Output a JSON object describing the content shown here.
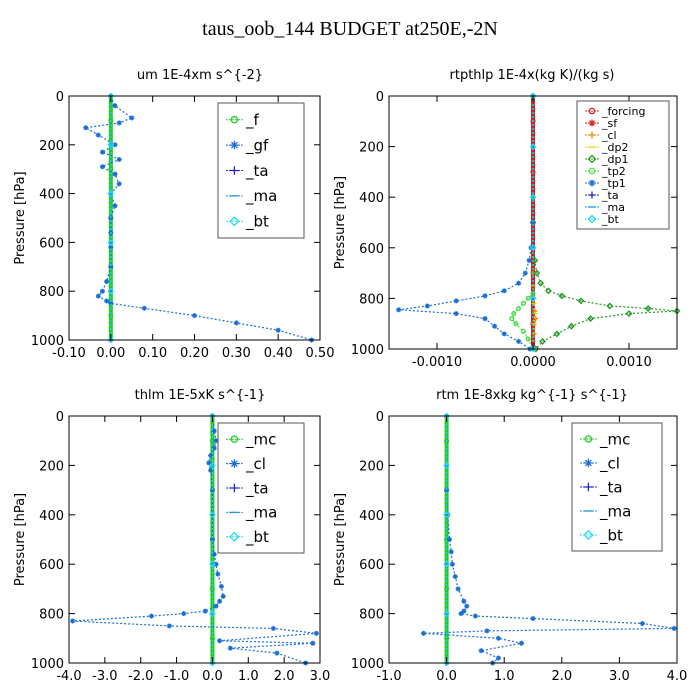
{
  "figure_title": "taus_oob_144  BUDGET at250E,-2N",
  "chart_data": [
    {
      "type": "line",
      "title": "um   1E-4xm s^{-2}",
      "ylabel": "Pressure [hPa]",
      "xlim": [
        -0.1,
        0.5
      ],
      "ylim": [
        1000,
        0
      ],
      "xticks": [
        "-0.10",
        "0.00",
        "0.10",
        "0.20",
        "0.30",
        "0.40",
        "0.50"
      ],
      "xtick_values": [
        -0.1,
        0.0,
        0.1,
        0.2,
        0.3,
        0.4,
        0.5
      ],
      "yticks": [
        "0",
        "200",
        "400",
        "600",
        "800",
        "1000"
      ],
      "ytick_values": [
        0,
        200,
        400,
        600,
        800,
        1000
      ],
      "legend_position": "top-right",
      "series": [
        {
          "name": "_f",
          "color": "#22cc22",
          "x": [
            0,
            0,
            0,
            0,
            0,
            0,
            0,
            0,
            0,
            0,
            0
          ],
          "y": [
            0,
            100,
            200,
            300,
            400,
            500,
            600,
            700,
            800,
            900,
            1000
          ]
        },
        {
          "name": "_gf",
          "color": "#1a6fd6",
          "x": [
            0.0,
            0.01,
            0.05,
            0.02,
            -0.06,
            -0.03,
            0.01,
            -0.02,
            0.02,
            -0.02,
            0.01,
            0.02,
            0.0,
            0.01,
            0.0,
            0.0,
            0.0,
            0.0,
            -0.01,
            -0.02,
            -0.03,
            -0.01,
            0.0,
            0.08,
            0.2,
            0.3,
            0.4,
            0.48
          ],
          "y": [
            0,
            40,
            90,
            110,
            130,
            160,
            200,
            230,
            260,
            290,
            320,
            360,
            400,
            450,
            500,
            560,
            620,
            700,
            760,
            800,
            820,
            840,
            850,
            870,
            900,
            930,
            960,
            1000
          ]
        },
        {
          "name": "_ta",
          "color": "#2222cc",
          "x": [
            0,
            0,
            0,
            0,
            0,
            0
          ],
          "y": [
            0,
            200,
            400,
            600,
            800,
            1000
          ]
        },
        {
          "name": "_ma",
          "color": "#2a8fd0",
          "x": [
            0,
            0,
            0,
            0,
            0,
            0
          ],
          "y": [
            0,
            200,
            400,
            600,
            800,
            1000
          ]
        },
        {
          "name": "_bt",
          "color": "#22ddee",
          "x": [
            0,
            0,
            0,
            0,
            0,
            0
          ],
          "y": [
            0,
            200,
            400,
            600,
            800,
            1000
          ]
        }
      ]
    },
    {
      "type": "line",
      "title": "rtpthlp   1E-4x(kg K)/(kg s)",
      "ylabel": "Pressure [hPa]",
      "xlim": [
        -0.0015,
        0.0015
      ],
      "ylim": [
        1000,
        0
      ],
      "xticks": [
        "-0.0010",
        "0.0000",
        "0.0010"
      ],
      "xtick_values": [
        -0.001,
        0.0,
        0.001
      ],
      "yticks": [
        "0",
        "200",
        "400",
        "600",
        "800",
        "1000"
      ],
      "ytick_values": [
        0,
        200,
        400,
        600,
        800,
        1000
      ],
      "legend_position": "top-right",
      "series": [
        {
          "name": "_forcing",
          "color": "#cc2222",
          "x": [
            0,
            0,
            0,
            0,
            0,
            0,
            0,
            0,
            0,
            0,
            0
          ],
          "y": [
            0,
            100,
            200,
            300,
            400,
            500,
            600,
            700,
            800,
            900,
            1000
          ]
        },
        {
          "name": "_sf",
          "color": "#dd2222",
          "x": [
            0,
            0,
            0,
            0,
            0,
            0,
            0,
            0,
            0,
            0,
            0
          ],
          "y": [
            0,
            100,
            200,
            300,
            400,
            500,
            600,
            700,
            800,
            900,
            1000
          ]
        },
        {
          "name": "_cl",
          "color": "#ee8800",
          "x": [
            0,
            0,
            1e-05,
            2e-05,
            3e-05,
            1e-05,
            0
          ],
          "y": [
            0,
            700,
            800,
            850,
            880,
            940,
            1000
          ]
        },
        {
          "name": "_dp2",
          "color": "#e8d200",
          "x": [
            0,
            0,
            1e-05,
            2e-05,
            1e-05,
            0
          ],
          "y": [
            0,
            750,
            820,
            860,
            900,
            1000
          ]
        },
        {
          "name": "_dp1",
          "color": "#229922",
          "x": [
            0,
            0,
            0,
            2e-05,
            4e-05,
            8e-05,
            0.00016,
            0.0003,
            0.0005,
            0.0008,
            0.0012,
            0.0015,
            0.001,
            0.0006,
            0.0004,
            0.00025,
            0.0001,
            3e-05
          ],
          "y": [
            0,
            500,
            600,
            650,
            700,
            740,
            770,
            790,
            810,
            830,
            840,
            850,
            860,
            880,
            910,
            940,
            970,
            1000
          ]
        },
        {
          "name": "_tp2",
          "color": "#44dd44",
          "x": [
            0,
            0,
            -5e-05,
            -0.0001,
            -0.00015,
            -0.0002,
            -0.00022,
            -0.00018,
            -0.0001,
            -5e-05,
            0
          ],
          "y": [
            0,
            780,
            800,
            820,
            840,
            860,
            880,
            900,
            930,
            960,
            1000
          ]
        },
        {
          "name": "_tp1",
          "color": "#1a6fd6",
          "x": [
            0,
            0,
            -2e-05,
            -4e-05,
            -8e-05,
            -0.00015,
            -0.0003,
            -0.0005,
            -0.0008,
            -0.0011,
            -0.0014,
            -0.0008,
            -0.0005,
            -0.0004,
            -0.0003,
            -0.00015,
            -3e-05
          ],
          "y": [
            0,
            500,
            600,
            650,
            700,
            740,
            770,
            790,
            810,
            830,
            845,
            860,
            880,
            910,
            940,
            970,
            1000
          ]
        },
        {
          "name": "_ta",
          "color": "#2222cc",
          "x": [
            0,
            0,
            0,
            0,
            0,
            0
          ],
          "y": [
            0,
            200,
            400,
            600,
            800,
            1000
          ]
        },
        {
          "name": "_ma",
          "color": "#2a8fd0",
          "x": [
            0,
            0,
            0,
            0,
            0,
            0
          ],
          "y": [
            0,
            200,
            400,
            600,
            800,
            1000
          ]
        },
        {
          "name": "_bt",
          "color": "#22ddee",
          "x": [
            0,
            0,
            0,
            0,
            0,
            0
          ],
          "y": [
            0,
            200,
            400,
            600,
            800,
            1000
          ]
        }
      ]
    },
    {
      "type": "line",
      "title": "thlm   1E-5xK  s^{-1}",
      "ylabel": "Pressure [hPa]",
      "xlim": [
        -4.0,
        3.0
      ],
      "ylim": [
        1000,
        0
      ],
      "xticks": [
        "-4.0",
        "-3.0",
        "-2.0",
        "-1.0",
        "0.0",
        "1.0",
        "2.0",
        "3.0"
      ],
      "xtick_values": [
        -4.0,
        -3.0,
        -2.0,
        -1.0,
        0.0,
        1.0,
        2.0,
        3.0
      ],
      "yticks": [
        "0",
        "200",
        "400",
        "600",
        "800",
        "1000"
      ],
      "ytick_values": [
        0,
        200,
        400,
        600,
        800,
        1000
      ],
      "legend_position": "top-right",
      "series": [
        {
          "name": "_mc",
          "color": "#22cc22",
          "x": [
            0,
            0,
            0,
            0,
            0,
            0,
            0,
            0,
            0,
            0,
            0
          ],
          "y": [
            0,
            100,
            200,
            300,
            400,
            500,
            600,
            700,
            800,
            900,
            1000
          ]
        },
        {
          "name": "_cl",
          "color": "#1a6fd6",
          "x": [
            0.0,
            0.05,
            0.1,
            0.05,
            -0.05,
            -0.1,
            -0.05,
            0.0,
            0.0,
            0.0,
            0.05,
            0.1,
            0.15,
            0.25,
            0.3,
            0.2,
            0.1,
            -0.2,
            -0.8,
            -1.7,
            -3.9,
            -1.2,
            1.7,
            2.9,
            0.2,
            2.8,
            0.5,
            1.8,
            2.6
          ],
          "y": [
            0,
            60,
            100,
            130,
            160,
            190,
            220,
            300,
            400,
            500,
            560,
            600,
            640,
            690,
            730,
            750,
            770,
            790,
            800,
            810,
            830,
            850,
            860,
            880,
            910,
            920,
            940,
            960,
            1000
          ]
        },
        {
          "name": "_ta",
          "color": "#2222cc",
          "x": [
            0,
            0,
            0,
            0,
            0,
            0
          ],
          "y": [
            0,
            200,
            400,
            600,
            800,
            1000
          ]
        },
        {
          "name": "_ma",
          "color": "#2a8fd0",
          "x": [
            0,
            0,
            0,
            0,
            0,
            0
          ],
          "y": [
            0,
            200,
            400,
            600,
            800,
            1000
          ]
        },
        {
          "name": "_bt",
          "color": "#22ddee",
          "x": [
            0,
            0,
            0,
            0,
            0,
            0
          ],
          "y": [
            0,
            200,
            400,
            600,
            800,
            1000
          ]
        }
      ]
    },
    {
      "type": "line",
      "title": "rtm   1E-8xkg kg^{-1} s^{-1}",
      "ylabel": "Pressure [hPa]",
      "xlim": [
        -1.0,
        4.0
      ],
      "ylim": [
        1000,
        0
      ],
      "xticks": [
        "-1.0",
        "0.0",
        "1.0",
        "2.0",
        "3.0",
        "4.0"
      ],
      "xtick_values": [
        -1.0,
        0.0,
        1.0,
        2.0,
        3.0,
        4.0
      ],
      "yticks": [
        "0",
        "200",
        "400",
        "600",
        "800",
        "1000"
      ],
      "ytick_values": [
        0,
        200,
        400,
        600,
        800,
        1000
      ],
      "legend_position": "top-right",
      "series": [
        {
          "name": "_mc",
          "color": "#22cc22",
          "x": [
            0,
            0,
            0,
            0,
            0,
            0,
            0,
            0,
            0,
            0,
            0
          ],
          "y": [
            0,
            100,
            200,
            300,
            400,
            500,
            600,
            700,
            800,
            900,
            1000
          ]
        },
        {
          "name": "_cl",
          "color": "#1a6fd6",
          "x": [
            0.0,
            0.0,
            0.02,
            0.05,
            0.08,
            0.1,
            0.15,
            0.2,
            0.3,
            0.35,
            0.3,
            0.25,
            0.5,
            1.5,
            3.4,
            3.95,
            0.7,
            -0.4,
            0.9,
            1.3,
            0.6,
            0.9,
            0.8
          ],
          "y": [
            0,
            300,
            400,
            500,
            550,
            600,
            650,
            700,
            750,
            770,
            790,
            800,
            810,
            820,
            840,
            860,
            870,
            880,
            900,
            920,
            950,
            980,
            1000
          ]
        },
        {
          "name": "_ta",
          "color": "#2222cc",
          "x": [
            0,
            0,
            0,
            0,
            0,
            0
          ],
          "y": [
            0,
            200,
            400,
            600,
            800,
            1000
          ]
        },
        {
          "name": "_ma",
          "color": "#2a8fd0",
          "x": [
            0,
            0,
            0,
            0,
            0,
            0
          ],
          "y": [
            0,
            200,
            400,
            600,
            800,
            1000
          ]
        },
        {
          "name": "_bt",
          "color": "#22ddee",
          "x": [
            0,
            0,
            0,
            0,
            0,
            0
          ],
          "y": [
            0,
            200,
            400,
            600,
            800,
            1000
          ]
        }
      ]
    }
  ]
}
